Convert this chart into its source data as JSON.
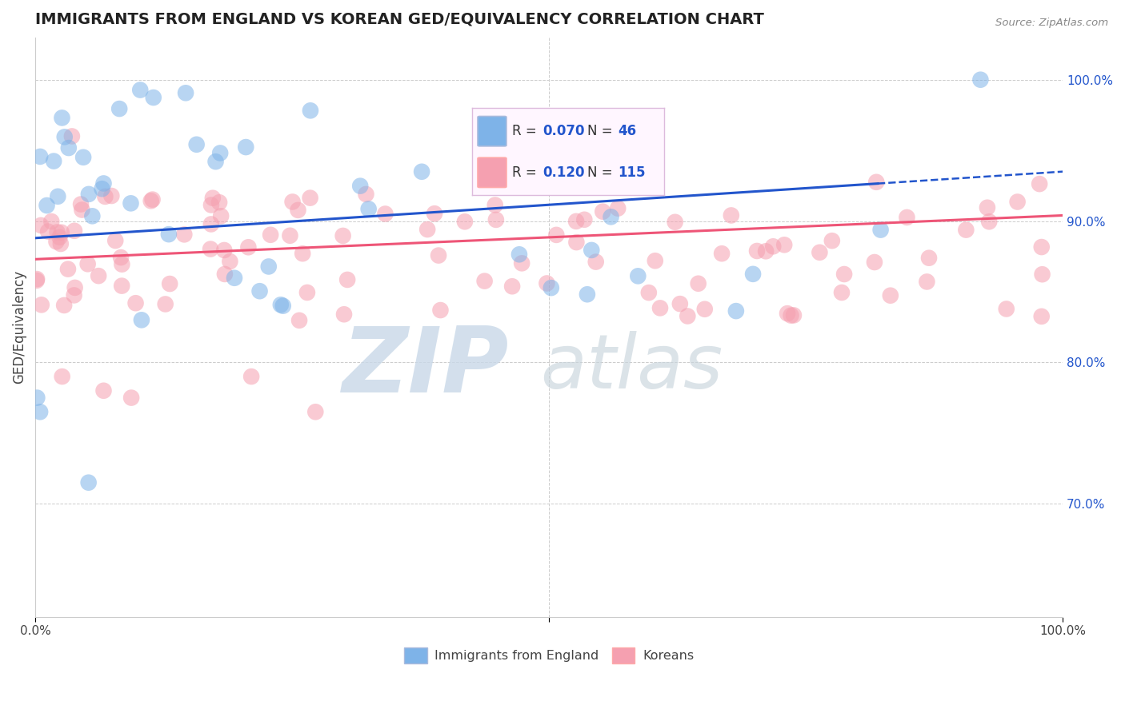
{
  "title": "IMMIGRANTS FROM ENGLAND VS KOREAN GED/EQUIVALENCY CORRELATION CHART",
  "source": "Source: ZipAtlas.com",
  "ylabel": "GED/Equivalency",
  "right_yticks": [
    70.0,
    80.0,
    90.0,
    100.0
  ],
  "xmin": 0.0,
  "xmax": 100.0,
  "ymin": 62.0,
  "ymax": 103.0,
  "blue_R": 0.07,
  "blue_N": 46,
  "pink_R": 0.12,
  "pink_N": 115,
  "blue_color": "#7EB3E8",
  "pink_color": "#F5A0B0",
  "blue_line_color": "#2255CC",
  "pink_line_color": "#EE5577",
  "grid_color": "#CCCCCC",
  "watermark_zip": "ZIP",
  "watermark_atlas": "atlas",
  "watermark_color_zip": "#C8D8E8",
  "watermark_color_atlas": "#C8D4DC",
  "blue_line_x0": 0.0,
  "blue_line_y0": 88.8,
  "blue_line_x1": 100.0,
  "blue_line_y1": 93.5,
  "blue_solid_end": 82.0,
  "pink_line_x0": 0.0,
  "pink_line_y0": 87.3,
  "pink_line_x1": 100.0,
  "pink_line_y1": 90.4
}
